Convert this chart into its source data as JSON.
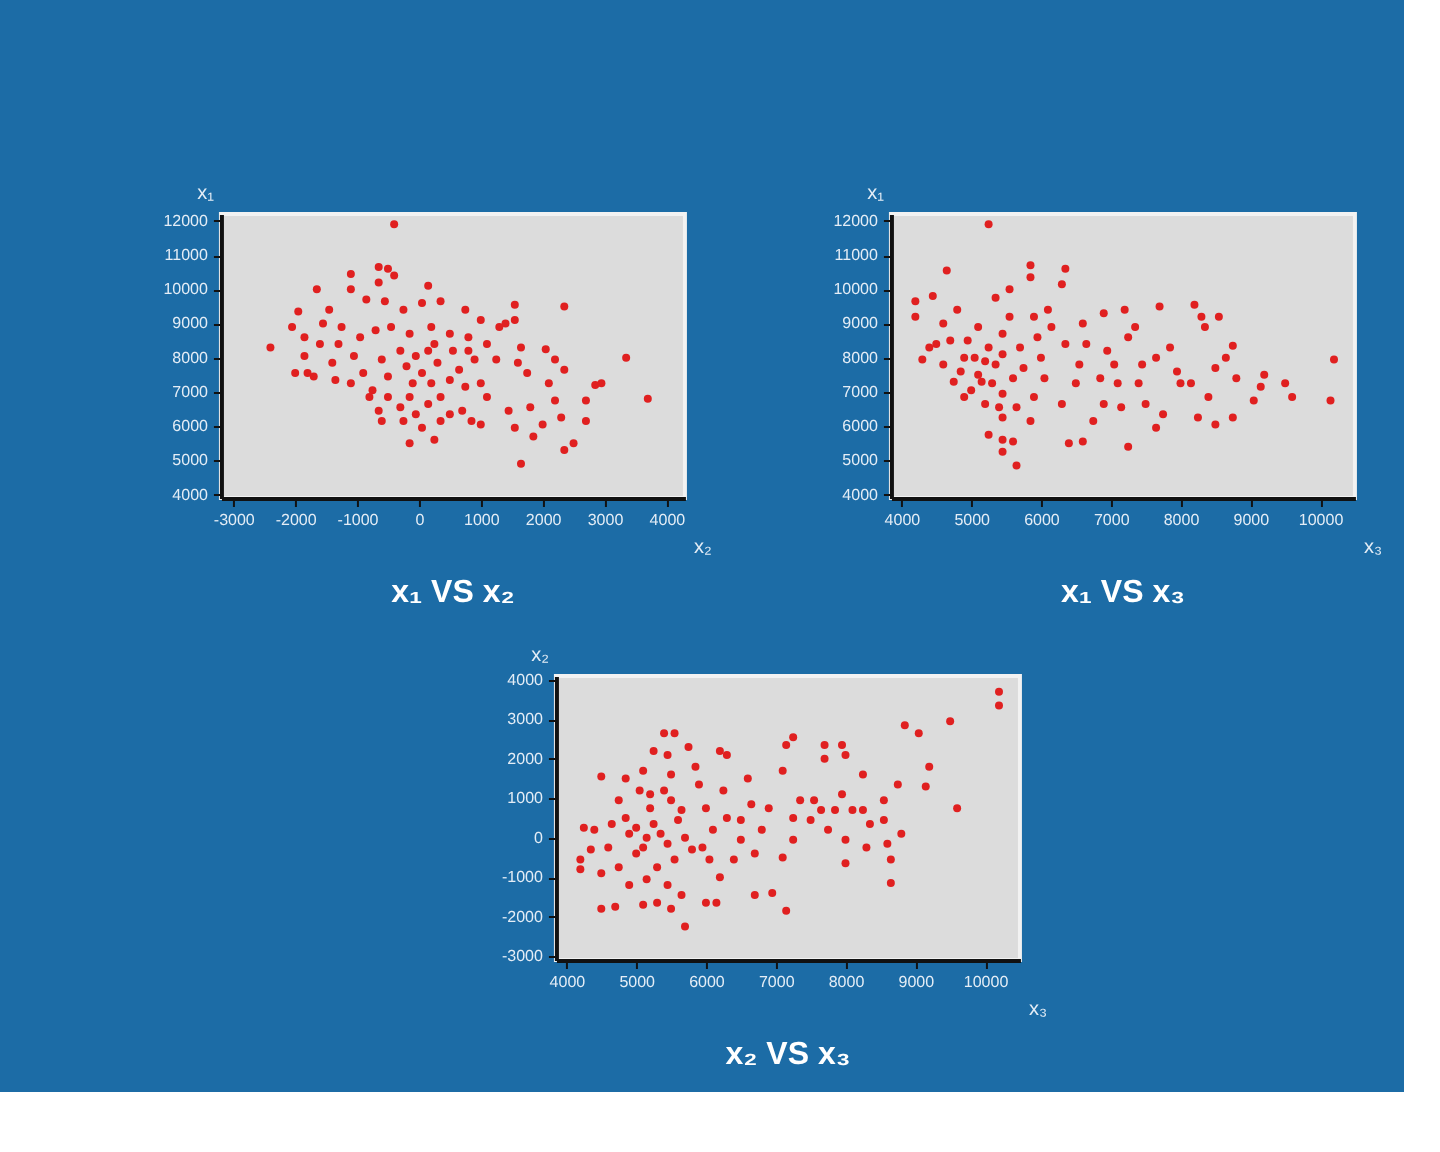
{
  "chart_data": [
    {
      "type": "scatter",
      "title": "x₁ VS x₂",
      "xlabel": "x₂",
      "ylabel": "x₁",
      "color": "#e02020",
      "marker": "circle",
      "grid": false,
      "xlim": [
        -3200,
        4300
      ],
      "ylim": [
        3900,
        12200
      ],
      "xticks": [
        -3000,
        -2000,
        -1000,
        0,
        1000,
        2000,
        3000,
        4000
      ],
      "yticks": [
        4000,
        5000,
        6000,
        7000,
        8000,
        9000,
        10000,
        11000,
        12000
      ],
      "x": [
        -400,
        -2400,
        2350,
        3350,
        3700,
        1650,
        -150,
        250,
        2350,
        2500,
        2950,
        2850,
        2700,
        2700,
        2300,
        2200,
        2100,
        2050,
        2200,
        2350,
        1800,
        2000,
        1850,
        1550,
        1450,
        1550,
        1550,
        1400,
        1650,
        1600,
        1750,
        -1100,
        -650,
        -500,
        -400,
        -650,
        150,
        -1650,
        -1950,
        -1450,
        -1100,
        -850,
        -550,
        -250,
        50,
        350,
        750,
        1000,
        1300,
        -2050,
        -1850,
        -1550,
        -1250,
        -950,
        -700,
        -450,
        -150,
        200,
        500,
        800,
        1100,
        1250,
        -1850,
        -2000,
        -1700,
        -1400,
        -1350,
        -1050,
        -900,
        -750,
        -600,
        -500,
        -300,
        -200,
        -50,
        -100,
        50,
        150,
        300,
        500,
        350,
        650,
        750,
        900,
        1000,
        1100,
        150,
        -50,
        -300,
        -600,
        -650,
        -800,
        -250,
        50,
        350,
        700,
        850,
        1000,
        500,
        200,
        -150,
        -500,
        -1100,
        -1800,
        -1600,
        -1300,
        250,
        550,
        800
      ],
      "values": [
        11900,
        8300,
        9500,
        8000,
        6800,
        4900,
        5500,
        5600,
        5300,
        5500,
        7250,
        7200,
        6750,
        6150,
        6250,
        6750,
        7250,
        8250,
        7950,
        7650,
        6550,
        6050,
        5700,
        5950,
        6450,
        9550,
        9100,
        9000,
        8300,
        7850,
        7550,
        10450,
        10650,
        10600,
        10400,
        10200,
        10100,
        10000,
        9350,
        9400,
        10000,
        9700,
        9650,
        9400,
        9600,
        9650,
        9400,
        9100,
        8900,
        8900,
        8600,
        9000,
        8900,
        8600,
        8800,
        8900,
        8700,
        8900,
        8700,
        8600,
        8400,
        7950,
        8050,
        7550,
        7450,
        7850,
        7350,
        8050,
        7550,
        7050,
        7950,
        7450,
        8200,
        7750,
        8050,
        7250,
        7550,
        8200,
        7850,
        7350,
        6850,
        7650,
        7150,
        7950,
        7250,
        6850,
        6650,
        6350,
        6550,
        6150,
        6450,
        6850,
        6150,
        5950,
        6150,
        6450,
        6150,
        6050,
        6350,
        7250,
        6850,
        6850,
        7250,
        7550,
        8400,
        8400,
        8400,
        8200,
        8200
      ]
    },
    {
      "type": "scatter",
      "title": "x₁ VS x₃",
      "xlabel": "x₃",
      "ylabel": "x₁",
      "color": "#e02020",
      "marker": "circle",
      "grid": false,
      "xlim": [
        3850,
        10500
      ],
      "ylim": [
        3900,
        12200
      ],
      "xticks": [
        4000,
        5000,
        6000,
        7000,
        8000,
        9000,
        10000
      ],
      "yticks": [
        4000,
        5000,
        6000,
        7000,
        8000,
        9000,
        10000,
        11000,
        12000
      ],
      "x": [
        5250,
        4650,
        4200,
        4200,
        4450,
        4300,
        5850,
        5850,
        6350,
        6300,
        5550,
        5350,
        7700,
        8200,
        8300,
        8550,
        8350,
        7200,
        6900,
        10200,
        10150,
        9500,
        9600,
        9200,
        9150,
        9050,
        8750,
        8650,
        8500,
        8750,
        8500,
        8250,
        8400,
        8000,
        7950,
        8150,
        7850,
        7650,
        7450,
        7400,
        7500,
        7750,
        7650,
        7150,
        7250,
        7100,
        7050,
        7250,
        7350,
        6950,
        6850,
        6900,
        6750,
        6600,
        6400,
        6600,
        6650,
        6550,
        6500,
        6300,
        6350,
        6100,
        6150,
        6000,
        6050,
        5900,
        5850,
        5600,
        5450,
        5650,
        5250,
        5450,
        5200,
        4900,
        4750,
        4600,
        4500,
        4600,
        4800,
        4950,
        5050,
        5100,
        5000,
        5300,
        5350,
        5250,
        5450,
        5550,
        5700,
        5750,
        5600,
        5450,
        5650,
        5400,
        5150,
        4900,
        4700,
        5900,
        5950,
        5200,
        5450,
        5100,
        4850,
        4400,
        5450,
        8800
      ],
      "values": [
        11900,
        10550,
        9650,
        9200,
        9800,
        7950,
        10700,
        10350,
        10600,
        10150,
        10000,
        9750,
        9500,
        9550,
        9200,
        9200,
        8900,
        9400,
        9300,
        7950,
        6750,
        7250,
        6850,
        7500,
        7150,
        6750,
        8350,
        8000,
        7700,
        6250,
        6050,
        6250,
        6850,
        7250,
        7600,
        7250,
        8300,
        8000,
        7800,
        7250,
        6650,
        6350,
        5950,
        6550,
        5400,
        7250,
        7800,
        8600,
        8900,
        8200,
        7400,
        6650,
        6150,
        5550,
        5500,
        9000,
        8400,
        7800,
        7250,
        6650,
        8400,
        9400,
        8900,
        8000,
        7400,
        6850,
        6150,
        5550,
        5250,
        4850,
        5750,
        6250,
        6650,
        6850,
        7300,
        7800,
        8400,
        9000,
        9400,
        8500,
        8000,
        7500,
        7050,
        7250,
        7800,
        8300,
        8700,
        9200,
        8300,
        7700,
        7400,
        6950,
        6550,
        6550,
        7300,
        8000,
        8500,
        9200,
        8600,
        7900,
        8100,
        8900,
        7600,
        8300,
        5600,
        7400
      ]
    },
    {
      "type": "scatter",
      "title": "x₂ VS x₃",
      "xlabel": "x₃",
      "ylabel": "x₂",
      "color": "#e02020",
      "marker": "circle",
      "grid": false,
      "xlim": [
        3850,
        10500
      ],
      "ylim": [
        -3100,
        4100
      ],
      "xticks": [
        4000,
        5000,
        6000,
        7000,
        8000,
        9000,
        10000
      ],
      "yticks": [
        -3000,
        -2000,
        -1000,
        0,
        1000,
        2000,
        3000,
        4000
      ],
      "x": [
        10200,
        10200,
        9500,
        8850,
        9050,
        9600,
        9200,
        9150,
        8650,
        8800,
        8750,
        8550,
        8550,
        8600,
        8650,
        8300,
        8350,
        8250,
        8250,
        8000,
        7950,
        7850,
        8000,
        8000,
        7750,
        7650,
        7500,
        7700,
        7700,
        7950,
        7250,
        7150,
        7100,
        7150,
        7100,
        7250,
        7250,
        7350,
        6900,
        6800,
        6700,
        6700,
        6600,
        6650,
        6500,
        6500,
        6400,
        6200,
        6150,
        6300,
        6200,
        6250,
        6300,
        6100,
        6000,
        5900,
        5850,
        5750,
        5550,
        5400,
        5250,
        5450,
        5500,
        5400,
        5200,
        5250,
        5350,
        5150,
        5450,
        5600,
        5700,
        5800,
        5550,
        5300,
        5150,
        5450,
        5650,
        5500,
        5700,
        5100,
        5000,
        4900,
        4850,
        5050,
        5100,
        4850,
        4750,
        4650,
        4600,
        4750,
        4900,
        4700,
        4500,
        4500,
        4400,
        4250,
        4200,
        4200,
        4350,
        4500,
        6000,
        5950,
        6050,
        5300,
        5200,
        5100,
        5500,
        5650,
        5000,
        6950,
        7550,
        8100
      ],
      "values": [
        3700,
        3350,
        2950,
        2850,
        2650,
        750,
        1800,
        1300,
        -1150,
        100,
        1350,
        950,
        450,
        -150,
        -550,
        -250,
        350,
        700,
        1600,
        2100,
        1100,
        700,
        -50,
        -650,
        200,
        700,
        450,
        2000,
        2350,
        2350,
        2550,
        2350,
        1700,
        -1850,
        -500,
        -50,
        500,
        950,
        750,
        200,
        -400,
        -1450,
        1500,
        850,
        450,
        -50,
        -550,
        -1000,
        -1650,
        2100,
        2200,
        1200,
        500,
        200,
        750,
        1350,
        1800,
        2300,
        2650,
        2650,
        2200,
        2100,
        1600,
        1200,
        750,
        350,
        100,
        0,
        -150,
        450,
        0,
        -300,
        -550,
        -750,
        -1050,
        -1200,
        -1450,
        -1800,
        -2250,
        -1700,
        -400,
        100,
        500,
        1200,
        1700,
        1500,
        950,
        350,
        -250,
        -750,
        -1200,
        -1750,
        -1800,
        1550,
        200,
        250,
        -550,
        -800,
        -300,
        -900,
        -1650,
        -250,
        -550,
        -1650,
        1100,
        -250,
        950,
        700,
        250,
        -1400,
        950,
        700
      ]
    }
  ]
}
